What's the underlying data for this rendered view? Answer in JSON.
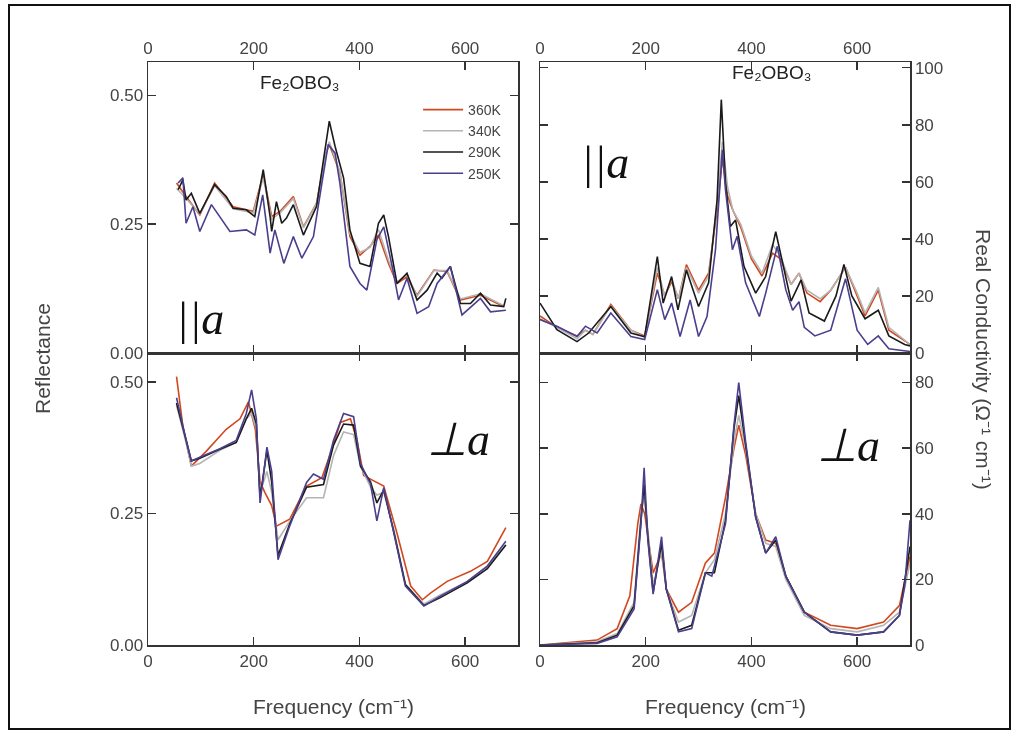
{
  "chart_data": [
    {
      "type": "line",
      "ylabel": "Reflectance",
      "annotations": [
        "Fe₂OBO₃",
        "||a"
      ],
      "legend": "top right",
      "xlim": [
        0,
        700
      ],
      "xticks": [
        0,
        200,
        400,
        600
      ],
      "ylim": [
        0,
        0.565
      ],
      "yticks": [
        {
          "value": 0,
          "label": "0.00"
        },
        {
          "value": 0.25,
          "label": "0.25"
        },
        {
          "value": 0.5,
          "label": "0.50"
        }
      ],
      "series": [
        {
          "name": "360K",
          "color": "#d2481e",
          "x": [
            54,
            72,
            98,
            126,
            161,
            199,
            218,
            234,
            250,
            275,
            294,
            319,
            335,
            343,
            363,
            382,
            401,
            420,
            436,
            455,
            471,
            490,
            509,
            541,
            566,
            591,
            629,
            673
          ],
          "values": [
            0.33,
            0.304,
            0.268,
            0.33,
            0.284,
            0.275,
            0.346,
            0.265,
            0.275,
            0.304,
            0.245,
            0.291,
            0.382,
            0.405,
            0.35,
            0.226,
            0.19,
            0.207,
            0.229,
            0.174,
            0.135,
            0.148,
            0.112,
            0.161,
            0.158,
            0.103,
            0.112,
            0.09
          ]
        },
        {
          "name": "340K",
          "color": "#b4b4b4",
          "x": [
            54,
            72,
            98,
            126,
            161,
            199,
            218,
            234,
            250,
            275,
            294,
            319,
            335,
            343,
            363,
            382,
            401,
            420,
            436,
            455,
            471,
            490,
            509,
            541,
            566,
            591,
            629,
            673
          ],
          "values": [
            0.32,
            0.3,
            0.27,
            0.325,
            0.28,
            0.272,
            0.34,
            0.26,
            0.272,
            0.3,
            0.243,
            0.29,
            0.38,
            0.41,
            0.352,
            0.232,
            0.195,
            0.205,
            0.24,
            0.18,
            0.138,
            0.152,
            0.11,
            0.16,
            0.16,
            0.105,
            0.115,
            0.092
          ]
        },
        {
          "name": "290K",
          "color": "#1a1a1a",
          "x": [
            57,
            66,
            72,
            82,
            98,
            126,
            148,
            161,
            186,
            202,
            218,
            231,
            234,
            243,
            253,
            262,
            275,
            294,
            319,
            332,
            343,
            354,
            370,
            382,
            401,
            420,
            436,
            446,
            455,
            471,
            490,
            509,
            528,
            547,
            556,
            572,
            591,
            610,
            629,
            648,
            673,
            677
          ],
          "values": [
            0.317,
            0.336,
            0.297,
            0.31,
            0.271,
            0.327,
            0.304,
            0.281,
            0.278,
            0.265,
            0.356,
            0.265,
            0.236,
            0.294,
            0.252,
            0.262,
            0.288,
            0.229,
            0.285,
            0.375,
            0.45,
            0.401,
            0.34,
            0.239,
            0.174,
            0.168,
            0.252,
            0.268,
            0.226,
            0.135,
            0.155,
            0.103,
            0.122,
            0.155,
            0.145,
            0.168,
            0.096,
            0.096,
            0.116,
            0.093,
            0.09,
            0.106
          ]
        },
        {
          "name": "250K",
          "color": "#4a3f8c",
          "x": [
            57,
            66,
            72,
            85,
            98,
            120,
            155,
            186,
            202,
            217,
            231,
            240,
            257,
            275,
            291,
            313,
            329,
            341,
            354,
            363,
            382,
            401,
            414,
            433,
            446,
            462,
            474,
            490,
            509,
            531,
            547,
            572,
            594,
            629,
            648,
            677
          ],
          "values": [
            0.33,
            0.34,
            0.252,
            0.284,
            0.236,
            0.288,
            0.236,
            0.239,
            0.229,
            0.307,
            0.194,
            0.239,
            0.174,
            0.226,
            0.184,
            0.226,
            0.33,
            0.405,
            0.388,
            0.33,
            0.168,
            0.135,
            0.122,
            0.22,
            0.245,
            0.168,
            0.103,
            0.145,
            0.077,
            0.09,
            0.135,
            0.168,
            0.074,
            0.106,
            0.08,
            0.083
          ]
        }
      ]
    },
    {
      "type": "line",
      "y2label": "Real Conductivity (Ω⁻¹ cm⁻¹)",
      "annotations": [
        "Fe₂OBO₃",
        "||a"
      ],
      "xlim": [
        0,
        700
      ],
      "xticks": [
        0,
        200,
        400,
        600
      ],
      "y2lim": [
        0,
        102
      ],
      "y2ticks": [
        0,
        20,
        40,
        60,
        80,
        100
      ],
      "series": [
        {
          "color": "#d2481e",
          "axis": "y2",
          "x": [
            0,
            32,
            70,
            86,
            100,
            134,
            172,
            198,
            222,
            236,
            249,
            262,
            277,
            300,
            319,
            335,
            345,
            355,
            365,
            380,
            400,
            420,
            440,
            455,
            475,
            490,
            505,
            530,
            550,
            578,
            600,
            615,
            640,
            660,
            700
          ],
          "values": [
            13,
            9,
            6,
            8,
            6.5,
            17,
            8,
            6,
            28,
            20,
            25,
            19,
            31,
            22,
            28,
            50,
            68,
            55,
            50,
            44,
            33,
            27,
            35,
            33,
            24,
            28,
            21,
            18,
            22,
            30,
            20,
            13,
            22,
            8,
            3
          ]
        },
        {
          "color": "#b4b4b4",
          "axis": "y2",
          "x": [
            0,
            32,
            70,
            86,
            100,
            134,
            172,
            198,
            222,
            236,
            249,
            262,
            277,
            300,
            319,
            335,
            345,
            355,
            365,
            380,
            400,
            420,
            440,
            455,
            475,
            490,
            505,
            530,
            550,
            578,
            600,
            615,
            640,
            660,
            700
          ],
          "values": [
            12,
            9,
            5,
            8,
            6.5,
            16.5,
            8,
            5.5,
            30,
            20,
            26,
            19,
            30,
            21,
            27,
            52,
            74,
            58,
            50,
            45,
            34,
            28,
            38,
            34,
            24,
            28,
            22,
            19,
            22,
            30,
            21,
            14,
            23,
            9,
            3
          ]
        },
        {
          "color": "#1a1a1a",
          "axis": "y2",
          "x": [
            0,
            32,
            70,
            92,
            134,
            172,
            198,
            222,
            233,
            249,
            261,
            277,
            300,
            319,
            335,
            343,
            351,
            360,
            370,
            386,
            408,
            427,
            446,
            475,
            494,
            509,
            538,
            560,
            575,
            590,
            615,
            640,
            660,
            690,
            700
          ],
          "values": [
            17.5,
            8.2,
            4,
            7,
            16.3,
            7,
            5.7,
            33.8,
            17.5,
            26.8,
            15.1,
            29.1,
            16.3,
            24.6,
            53.6,
            88.8,
            59.5,
            44.3,
            46.6,
            30.3,
            21,
            26.8,
            42.5,
            18.2,
            25.6,
            14,
            11.2,
            20,
            31,
            20,
            12,
            15,
            6,
            3,
            2.5
          ]
        },
        {
          "color": "#4a3f8c",
          "axis": "y2",
          "x": [
            0,
            32,
            70,
            86,
            108,
            134,
            172,
            198,
            222,
            236,
            249,
            265,
            284,
            300,
            316,
            332,
            345,
            351,
            364,
            373,
            389,
            415,
            427,
            449,
            465,
            478,
            490,
            500,
            520,
            550,
            578,
            600,
            620,
            640,
            660,
            700
          ],
          "values": [
            11.7,
            9.4,
            5.8,
            9.4,
            7,
            14,
            5.8,
            4.7,
            22.2,
            11.7,
            17.5,
            5.8,
            18.6,
            5.8,
            12.8,
            36.2,
            71.2,
            57,
            36.2,
            40.9,
            24.6,
            12.8,
            21,
            37.4,
            22.2,
            15,
            18,
            9,
            6,
            8,
            26,
            8,
            3,
            6,
            1.5,
            0.5
          ]
        }
      ]
    },
    {
      "type": "line",
      "xlabel": "Frequency (cm⁻¹)",
      "annotations": [
        "⊥a"
      ],
      "xlim": [
        0,
        700
      ],
      "xticks": [
        0,
        200,
        400,
        600
      ],
      "ylim": [
        0,
        0.555
      ],
      "yticks": [
        {
          "value": 0,
          "label": "0.00"
        },
        {
          "value": 0.25,
          "label": "0.25"
        },
        {
          "value": 0.5,
          "label": "0.50"
        }
      ],
      "series": [
        {
          "color": "#d2481e",
          "x": [
            54,
            66,
            82,
            110,
            148,
            174,
            190,
            203,
            212,
            221,
            234,
            243,
            268,
            300,
            329,
            348,
            364,
            383,
            395,
            408,
            446,
            471,
            497,
            519,
            535,
            566,
            610,
            642,
            677
          ],
          "values": [
            0.51,
            0.415,
            0.34,
            0.368,
            0.41,
            0.43,
            0.462,
            0.41,
            0.31,
            0.29,
            0.265,
            0.226,
            0.239,
            0.302,
            0.318,
            0.372,
            0.423,
            0.43,
            0.391,
            0.322,
            0.302,
            0.213,
            0.112,
            0.086,
            0.099,
            0.121,
            0.14,
            0.159,
            0.223
          ]
        },
        {
          "color": "#b4b4b4",
          "x": [
            54,
            72,
            82,
            98,
            136,
            167,
            186,
            196,
            205,
            212,
            225,
            234,
            246,
            268,
            300,
            332,
            351,
            370,
            389,
            402,
            421,
            433,
            446,
            465,
            487,
            522,
            553,
            604,
            642,
            677
          ],
          "values": [
            0.455,
            0.385,
            0.34,
            0.345,
            0.37,
            0.385,
            0.43,
            0.44,
            0.41,
            0.29,
            0.33,
            0.29,
            0.2,
            0.235,
            0.28,
            0.28,
            0.36,
            0.405,
            0.4,
            0.34,
            0.3,
            0.285,
            0.29,
            0.22,
            0.115,
            0.078,
            0.095,
            0.12,
            0.15,
            0.19
          ]
        },
        {
          "color": "#1a1a1a",
          "x": [
            54,
            72,
            82,
            98,
            136,
            167,
            186,
            196,
            205,
            212,
            225,
            234,
            246,
            268,
            300,
            332,
            351,
            370,
            389,
            402,
            421,
            433,
            446,
            465,
            487,
            522,
            553,
            604,
            642,
            677
          ],
          "values": [
            0.46,
            0.39,
            0.35,
            0.355,
            0.372,
            0.385,
            0.43,
            0.45,
            0.42,
            0.28,
            0.37,
            0.31,
            0.17,
            0.23,
            0.3,
            0.305,
            0.38,
            0.42,
            0.418,
            0.34,
            0.31,
            0.27,
            0.295,
            0.215,
            0.115,
            0.075,
            0.09,
            0.118,
            0.145,
            0.19
          ]
        },
        {
          "color": "#4a3f8c",
          "x": [
            54,
            72,
            82,
            98,
            136,
            167,
            186,
            196,
            205,
            212,
            225,
            234,
            246,
            268,
            300,
            313,
            332,
            351,
            370,
            389,
            402,
            421,
            433,
            446,
            465,
            487,
            522,
            553,
            604,
            642,
            677
          ],
          "values": [
            0.47,
            0.39,
            0.35,
            0.357,
            0.373,
            0.389,
            0.44,
            0.485,
            0.43,
            0.27,
            0.376,
            0.33,
            0.162,
            0.226,
            0.309,
            0.325,
            0.315,
            0.389,
            0.44,
            0.434,
            0.345,
            0.306,
            0.236,
            0.299,
            0.213,
            0.112,
            0.074,
            0.093,
            0.121,
            0.15,
            0.197
          ]
        }
      ]
    },
    {
      "type": "line",
      "xlabel": "Frequency (cm⁻¹)",
      "annotations": [
        "⊥a"
      ],
      "xlim": [
        0,
        700
      ],
      "xticks": [
        0,
        200,
        400,
        600
      ],
      "y2lim": [
        0,
        89
      ],
      "y2ticks": [
        0,
        20,
        40,
        60,
        80
      ],
      "series": [
        {
          "color": "#d2481e",
          "axis": "y2",
          "x": [
            0,
            108,
            146,
            170,
            185,
            191,
            198,
            214,
            230,
            239,
            262,
            287,
            313,
            330,
            351,
            367,
            376,
            389,
            408,
            427,
            446,
            465,
            500,
            550,
            600,
            650,
            680,
            700
          ],
          "values": [
            0,
            1.5,
            5,
            15,
            37,
            43,
            40,
            22,
            28,
            17,
            10,
            13,
            25,
            28,
            45,
            60,
            67,
            58,
            40,
            32,
            31,
            21,
            10,
            6,
            5,
            7,
            12,
            27
          ]
        },
        {
          "color": "#b4b4b4",
          "axis": "y2",
          "x": [
            0,
            108,
            146,
            178,
            191,
            197,
            204,
            214,
            230,
            239,
            262,
            287,
            313,
            330,
            351,
            367,
            376,
            389,
            408,
            427,
            446,
            465,
            500,
            550,
            600,
            650,
            680,
            700
          ],
          "values": [
            0,
            1,
            3.5,
            13,
            40,
            45,
            35,
            18,
            29,
            17,
            7,
            9,
            22,
            26,
            40,
            62,
            70,
            60,
            40,
            31,
            30,
            20,
            9,
            5,
            4,
            6,
            10,
            25
          ]
        },
        {
          "color": "#1a1a1a",
          "axis": "y2",
          "x": [
            0,
            108,
            146,
            178,
            191,
            197,
            204,
            214,
            230,
            239,
            262,
            287,
            313,
            330,
            351,
            367,
            376,
            389,
            408,
            427,
            446,
            465,
            500,
            550,
            600,
            650,
            680,
            700
          ],
          "values": [
            0,
            0.7,
            3,
            12,
            38,
            49,
            33,
            16,
            31,
            17,
            4.5,
            6,
            22,
            22,
            38,
            66,
            76,
            61,
            39,
            28,
            32,
            21,
            10,
            4,
            3,
            4,
            9,
            30
          ]
        },
        {
          "color": "#4a3f8c",
          "axis": "y2",
          "x": [
            0,
            108,
            146,
            178,
            191,
            197,
            204,
            214,
            230,
            239,
            262,
            287,
            313,
            325,
            351,
            367,
            376,
            389,
            408,
            427,
            446,
            465,
            500,
            550,
            600,
            650,
            680,
            690,
            700
          ],
          "values": [
            0,
            0.5,
            2.5,
            11,
            37,
            54,
            32,
            15.5,
            33,
            17,
            4,
            5,
            22,
            21,
            37,
            67,
            80,
            62,
            39,
            28,
            33,
            21,
            10,
            4,
            3,
            4,
            9,
            18,
            38
          ]
        }
      ]
    }
  ]
}
